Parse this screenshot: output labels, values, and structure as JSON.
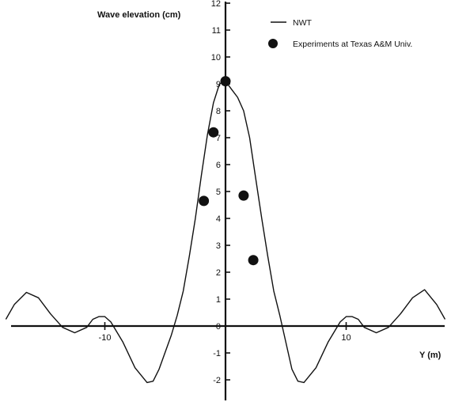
{
  "chart_data": {
    "type": "line",
    "ylabel": "Wave elevation (cm)",
    "xlabel": "Y (m)",
    "xlim": [
      -18.5,
      18.5
    ],
    "ylim": [
      -2.5,
      12
    ],
    "grid": false,
    "legend_position": "top-right",
    "x_ticks": [
      {
        "value": -10,
        "label": "-10"
      },
      {
        "value": 10,
        "label": "10"
      }
    ],
    "y_ticks": [
      {
        "value": -2,
        "label": "-2"
      },
      {
        "value": -1,
        "label": "-1"
      },
      {
        "value": 0,
        "label": "0"
      },
      {
        "value": 1,
        "label": "1"
      },
      {
        "value": 2,
        "label": "2"
      },
      {
        "value": 3,
        "label": "3"
      },
      {
        "value": 4,
        "label": "4"
      },
      {
        "value": 5,
        "label": "5"
      },
      {
        "value": 6,
        "label": "6"
      },
      {
        "value": 7,
        "label": "7"
      },
      {
        "value": 8,
        "label": "8"
      },
      {
        "value": 9,
        "label": "9"
      },
      {
        "value": 10,
        "label": "10"
      },
      {
        "value": 11,
        "label": "11"
      },
      {
        "value": 12,
        "label": "12"
      }
    ],
    "series": [
      {
        "name": "NWT",
        "style": "line",
        "color": "#111111",
        "x": [
          -18.2,
          -17.5,
          -16.5,
          -15.5,
          -14.5,
          -13.5,
          -12.5,
          -11.5,
          -11.0,
          -10.5,
          -10.0,
          -9.5,
          -8.5,
          -7.5,
          -6.5,
          -6.0,
          -5.5,
          -4.5,
          -4.0,
          -3.5,
          -3.0,
          -2.5,
          -2.0,
          -1.5,
          -1.0,
          -0.5,
          0.0,
          0.5,
          1.0,
          1.5,
          2.0,
          2.5,
          3.0,
          3.5,
          4.0,
          4.5,
          5.5,
          6.0,
          6.5,
          7.5,
          8.5,
          9.5,
          10.0,
          10.5,
          11.0,
          11.5,
          12.5,
          13.5,
          14.5,
          15.5,
          16.5,
          17.5,
          18.2
        ],
        "y": [
          0.25,
          0.8,
          1.25,
          1.05,
          0.45,
          -0.05,
          -0.25,
          -0.05,
          0.25,
          0.35,
          0.35,
          0.15,
          -0.6,
          -1.55,
          -2.1,
          -2.05,
          -1.6,
          -0.35,
          0.4,
          1.3,
          2.6,
          4.0,
          5.6,
          7.1,
          8.3,
          9.0,
          9.1,
          8.8,
          8.5,
          8.0,
          7.0,
          5.5,
          4.0,
          2.6,
          1.3,
          0.4,
          -1.6,
          -2.05,
          -2.1,
          -1.55,
          -0.6,
          0.15,
          0.35,
          0.35,
          0.25,
          -0.05,
          -0.25,
          -0.05,
          0.45,
          1.05,
          1.35,
          0.8,
          0.25
        ]
      },
      {
        "name": "Experiments at Texas A&M Univ.",
        "style": "points",
        "color": "#111111",
        "x": [
          -1.8,
          -1.0,
          0.0,
          1.5,
          2.3
        ],
        "y": [
          4.65,
          7.2,
          9.1,
          4.85,
          2.45
        ]
      }
    ]
  }
}
